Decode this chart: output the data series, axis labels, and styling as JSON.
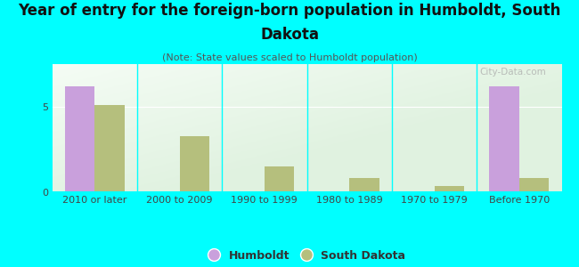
{
  "title_line1": "Year of entry for the foreign-born population in Humboldt, South",
  "title_line2": "Dakota",
  "subtitle": "(Note: State values scaled to Humboldt population)",
  "categories": [
    "2010 or later",
    "2000 to 2009",
    "1990 to 1999",
    "1980 to 1989",
    "1970 to 1979",
    "Before 1970"
  ],
  "humboldt_values": [
    6.2,
    0,
    0,
    0,
    0,
    6.2
  ],
  "sd_values": [
    5.1,
    3.3,
    1.5,
    0.85,
    0.38,
    0.85
  ],
  "humboldt_color": "#c9a0dc",
  "sd_color": "#b5bf7d",
  "background_color": "#00ffff",
  "ylim": [
    0,
    7.5
  ],
  "yticks": [
    0,
    5
  ],
  "bar_width": 0.35,
  "watermark": "City-Data.com",
  "legend_humboldt": "Humboldt",
  "legend_sd": "South Dakota",
  "title_fontsize": 12,
  "subtitle_fontsize": 8,
  "tick_fontsize": 8
}
